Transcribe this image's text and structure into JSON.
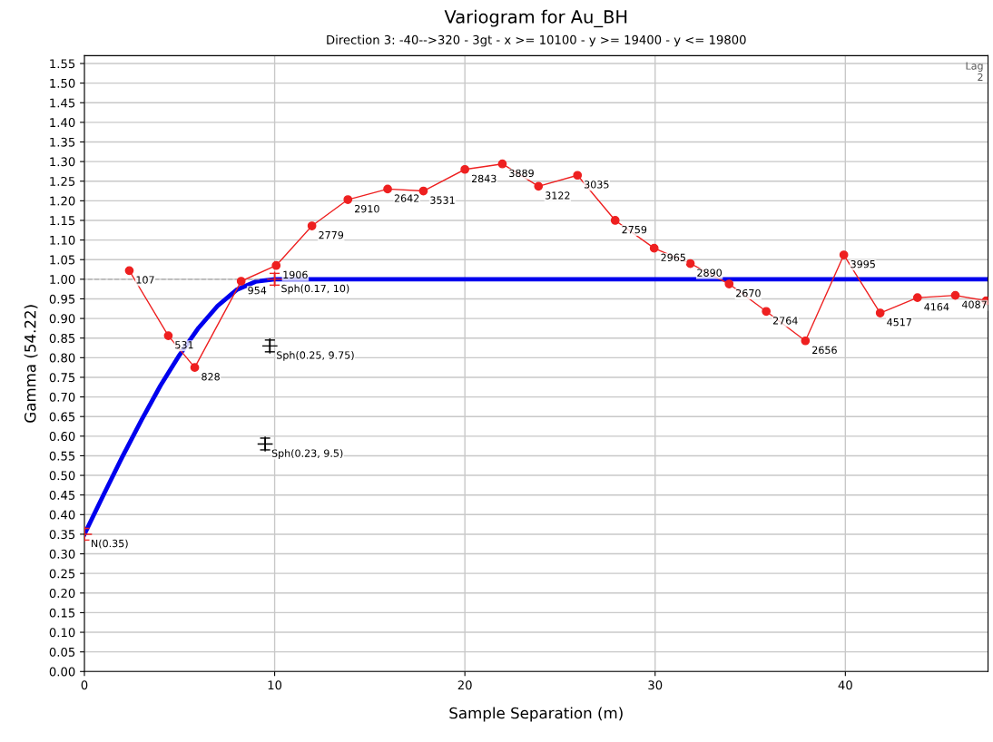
{
  "chart_data": {
    "type": "line",
    "title": "Variogram for Au_BH",
    "subtitle": "Direction 3: -40-->320 - 3gt - x >= 10100 - y >= 19400 - y <= 19800",
    "xlabel": "Sample Separation (m)",
    "ylabel": "Gamma (54.22)",
    "xlim": [
      0,
      47.5
    ],
    "xticks": [
      0,
      10,
      20,
      30,
      40
    ],
    "ylim": [
      0,
      1.57
    ],
    "yticks": [
      {
        "value": 0,
        "label": "0.00"
      },
      {
        "value": 0.05,
        "label": "0.05"
      },
      {
        "value": 0.1,
        "label": "0.10"
      },
      {
        "value": 0.15,
        "label": "0.15"
      },
      {
        "value": 0.2,
        "label": "0.20"
      },
      {
        "value": 0.25,
        "label": "0.25"
      },
      {
        "value": 0.3,
        "label": "0.30"
      },
      {
        "value": 0.35,
        "label": "0.35"
      },
      {
        "value": 0.4,
        "label": "0.40"
      },
      {
        "value": 0.45,
        "label": "0.45"
      },
      {
        "value": 0.5,
        "label": "0.50"
      },
      {
        "value": 0.55,
        "label": "0.55"
      },
      {
        "value": 0.6,
        "label": "0.60"
      },
      {
        "value": 0.65,
        "label": "0.65"
      },
      {
        "value": 0.7,
        "label": "0.70"
      },
      {
        "value": 0.75,
        "label": "0.75"
      },
      {
        "value": 0.8,
        "label": "0.80"
      },
      {
        "value": 0.85,
        "label": "0.85"
      },
      {
        "value": 0.9,
        "label": "0.90"
      },
      {
        "value": 0.95,
        "label": "0.95"
      },
      {
        "value": 1.0,
        "label": "1.00"
      },
      {
        "value": 1.05,
        "label": "1.05"
      },
      {
        "value": 1.1,
        "label": "1.10"
      },
      {
        "value": 1.15,
        "label": "1.15"
      },
      {
        "value": 1.2,
        "label": "1.20"
      },
      {
        "value": 1.25,
        "label": "1.25"
      },
      {
        "value": 1.3,
        "label": "1.30"
      },
      {
        "value": 1.35,
        "label": "1.35"
      },
      {
        "value": 1.4,
        "label": "1.40"
      },
      {
        "value": 1.45,
        "label": "1.45"
      },
      {
        "value": 1.5,
        "label": "1.50"
      },
      {
        "value": 1.55,
        "label": "1.55"
      }
    ],
    "grid": true,
    "series": [
      {
        "type": "line",
        "color": "#aaaaaa",
        "line_style": "dashed",
        "marker": "none",
        "x": [
          9.2,
          0
        ],
        "values": [
          1.0,
          1.0
        ]
      },
      {
        "type": "line",
        "color": "#0000ee",
        "marker": "none",
        "x": [
          0,
          1,
          2,
          3,
          4,
          5,
          6,
          7,
          8,
          9,
          10,
          47.5
        ],
        "values": [
          0.35,
          0.45,
          0.548,
          0.641,
          0.729,
          0.807,
          0.876,
          0.932,
          0.973,
          0.994,
          1.0,
          1.0
        ]
      },
      {
        "type": "line",
        "color": "#ee2020",
        "marker": "circle",
        "x": [
          2.36,
          4.41,
          5.8,
          8.24,
          10.08,
          11.96,
          13.85,
          15.94,
          17.82,
          20.0,
          21.97,
          23.87,
          25.92,
          27.9,
          29.95,
          31.85,
          33.89,
          35.84,
          37.9,
          39.92,
          41.83,
          43.79,
          45.78,
          47.4
        ],
        "values": [
          1.022,
          0.856,
          0.775,
          0.995,
          1.035,
          1.136,
          1.203,
          1.23,
          1.225,
          1.28,
          1.294,
          1.237,
          1.265,
          1.15,
          1.079,
          1.04,
          0.988,
          0.918,
          0.843,
          1.062,
          0.914,
          0.953,
          0.959,
          0.945
        ]
      },
      {
        "type": "scatter",
        "colors": [
          "#ee2020",
          "#ee2020",
          "#000000",
          "#000000"
        ],
        "marker": "cross",
        "x": [
          0,
          10,
          9.75,
          9.5
        ],
        "values": [
          0.35,
          1.0,
          0.83,
          0.58
        ],
        "errors": [
          0.015,
          0.015,
          0.015,
          0.015
        ]
      }
    ],
    "annotations": [
      {
        "text": "N(0.35)",
        "x": 0,
        "y": 0.35
      },
      {
        "text": "Sph(0.17, 10)",
        "x": 10,
        "y": 1.0
      },
      {
        "text": "Sph(0.25, 9.75)",
        "x": 9.75,
        "y": 0.83
      },
      {
        "text": "Sph(0.23, 9.5)",
        "x": 9.5,
        "y": 0.58
      },
      {
        "text": "107",
        "x": 2.36,
        "y": 1.022
      },
      {
        "text": "531",
        "x": 4.41,
        "y": 0.856
      },
      {
        "text": "828",
        "x": 5.8,
        "y": 0.775
      },
      {
        "text": "954",
        "x": 8.24,
        "y": 0.995
      },
      {
        "text": "1906",
        "x": 10.08,
        "y": 1.035
      },
      {
        "text": "2779",
        "x": 11.96,
        "y": 1.136
      },
      {
        "text": "2910",
        "x": 13.85,
        "y": 1.203
      },
      {
        "text": "2642",
        "x": 15.94,
        "y": 1.23
      },
      {
        "text": "3531",
        "x": 17.82,
        "y": 1.225
      },
      {
        "text": "2843",
        "x": 20.0,
        "y": 1.28
      },
      {
        "text": "3889",
        "x": 21.97,
        "y": 1.294
      },
      {
        "text": "3122",
        "x": 23.87,
        "y": 1.237
      },
      {
        "text": "3035",
        "x": 25.92,
        "y": 1.265
      },
      {
        "text": "2759",
        "x": 27.9,
        "y": 1.15
      },
      {
        "text": "2965",
        "x": 29.95,
        "y": 1.079
      },
      {
        "text": "2890",
        "x": 31.85,
        "y": 1.04
      },
      {
        "text": "2670",
        "x": 33.89,
        "y": 0.988
      },
      {
        "text": "2764",
        "x": 35.84,
        "y": 0.918
      },
      {
        "text": "2656",
        "x": 37.9,
        "y": 0.843
      },
      {
        "text": "3995",
        "x": 39.92,
        "y": 1.062
      },
      {
        "text": "4517",
        "x": 41.83,
        "y": 0.914
      },
      {
        "text": "4164",
        "x": 43.79,
        "y": 0.953
      },
      {
        "text": "4087",
        "x": 45.78,
        "y": 0.959
      },
      "Lag\n2"
    ]
  }
}
